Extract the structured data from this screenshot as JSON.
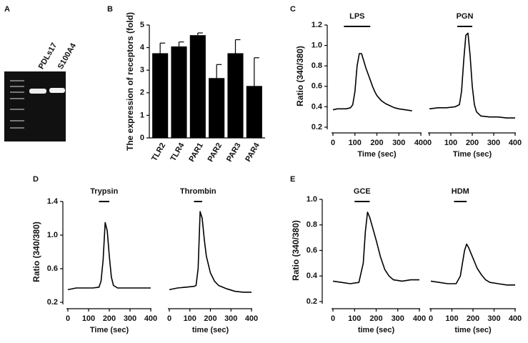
{
  "gel": {
    "label": "A",
    "lanes": [
      "PDLs17",
      "S100A4"
    ]
  },
  "chart_data": [
    {
      "type": "bar",
      "label": "B",
      "ylabel": "The expression of receptors (fold)",
      "categories": [
        "TLR2",
        "TLR4",
        "PAR1",
        "PAR2",
        "PAR3",
        "PAR4"
      ],
      "values": [
        3.75,
        4.05,
        4.55,
        2.65,
        3.75,
        2.3
      ],
      "errors": [
        0.45,
        0.2,
        0.1,
        0.6,
        0.6,
        1.25
      ],
      "color": "#000000",
      "ylim": [
        0,
        5
      ],
      "yticks": [
        0,
        1,
        2,
        3,
        4,
        5
      ]
    },
    {
      "type": "line",
      "label": "C",
      "ylabel": "Ratio (340/380)",
      "ylim": [
        0.2,
        1.2
      ],
      "yticks": [
        0.2,
        0.4,
        0.6,
        0.8,
        {
          "value": 1,
          "label": "1.0"
        },
        1.2
      ],
      "xlim": [
        0,
        400
      ],
      "xticks": [
        0,
        100,
        200,
        300,
        400
      ],
      "series": [
        {
          "name": "LPS",
          "color": "#000000",
          "stimulus": [
            50,
            170
          ],
          "xlabel": "Time (sec)",
          "x": [
            0,
            20,
            40,
            60,
            80,
            90,
            100,
            110,
            120,
            130,
            140,
            150,
            160,
            170,
            180,
            190,
            200,
            220,
            240,
            260,
            280,
            300,
            330,
            360
          ],
          "values": [
            0.37,
            0.38,
            0.38,
            0.38,
            0.39,
            0.42,
            0.55,
            0.8,
            0.92,
            0.92,
            0.85,
            0.78,
            0.72,
            0.66,
            0.6,
            0.55,
            0.51,
            0.46,
            0.43,
            0.41,
            0.39,
            0.38,
            0.37,
            0.36
          ]
        },
        {
          "name": "PGN",
          "color": "#000000",
          "stimulus": [
            130,
            200
          ],
          "xlabel": "Time (sec)",
          "x": [
            0,
            40,
            80,
            120,
            140,
            150,
            160,
            170,
            180,
            190,
            200,
            210,
            220,
            240,
            280,
            320,
            360,
            400
          ],
          "values": [
            0.38,
            0.39,
            0.39,
            0.4,
            0.42,
            0.55,
            0.85,
            1.1,
            1.12,
            0.9,
            0.6,
            0.42,
            0.35,
            0.31,
            0.3,
            0.3,
            0.29,
            0.29
          ]
        }
      ]
    },
    {
      "type": "line",
      "label": "D",
      "ylabel": "Ratio (340/380)",
      "ylim": [
        0.2,
        1.4
      ],
      "yticks": [
        0.2,
        0.6,
        {
          "value": 1,
          "label": "1.0"
        },
        1.4
      ],
      "xlim": [
        0,
        400
      ],
      "xticks": [
        0,
        100,
        200,
        300,
        400
      ],
      "series": [
        {
          "name": "Trypsin",
          "color": "#000000",
          "stimulus": [
            150,
            200
          ],
          "xlabel": "Time (sec)",
          "x": [
            0,
            40,
            80,
            120,
            150,
            160,
            170,
            180,
            190,
            200,
            210,
            220,
            240,
            280,
            320,
            360,
            400
          ],
          "values": [
            0.35,
            0.37,
            0.37,
            0.37,
            0.38,
            0.45,
            0.7,
            1.15,
            1.05,
            0.75,
            0.5,
            0.4,
            0.37,
            0.37,
            0.37,
            0.37,
            0.37
          ]
        },
        {
          "name": "Thrombin",
          "color": "#000000",
          "stimulus": [
            120,
            160
          ],
          "xlabel": "time (sec)",
          "x": [
            0,
            40,
            80,
            120,
            130,
            140,
            150,
            160,
            170,
            180,
            200,
            220,
            240,
            280,
            320,
            360,
            400
          ],
          "values": [
            0.35,
            0.37,
            0.38,
            0.39,
            0.4,
            0.6,
            1.28,
            1.2,
            0.95,
            0.75,
            0.55,
            0.45,
            0.4,
            0.36,
            0.33,
            0.32,
            0.32
          ]
        }
      ]
    },
    {
      "type": "line",
      "label": "E",
      "ylabel": "Ratio (340/380)",
      "ylim": [
        0.2,
        1.0
      ],
      "yticks": [
        0.2,
        0.4,
        0.6,
        0.8,
        {
          "value": 1,
          "label": "1.0"
        }
      ],
      "xlim": [
        0,
        400
      ],
      "xticks": [
        0,
        100,
        200,
        300,
        400
      ],
      "series": [
        {
          "name": "GCE",
          "color": "#000000",
          "stimulus": [
            100,
            170
          ],
          "xlabel": "time (sec)",
          "x": [
            0,
            40,
            80,
            120,
            140,
            150,
            160,
            170,
            180,
            200,
            220,
            240,
            260,
            280,
            320,
            360,
            400
          ],
          "values": [
            0.36,
            0.35,
            0.34,
            0.35,
            0.5,
            0.75,
            0.9,
            0.86,
            0.8,
            0.68,
            0.55,
            0.45,
            0.4,
            0.37,
            0.36,
            0.37,
            0.37
          ]
        },
        {
          "name": "HDM",
          "color": "#000000",
          "stimulus": [
            110,
            170
          ],
          "xlabel": "time (sec)",
          "x": [
            0,
            40,
            80,
            120,
            140,
            160,
            170,
            180,
            190,
            200,
            220,
            240,
            260,
            280,
            320,
            360,
            400
          ],
          "values": [
            0.36,
            0.35,
            0.34,
            0.34,
            0.4,
            0.6,
            0.65,
            0.62,
            0.58,
            0.54,
            0.46,
            0.41,
            0.37,
            0.35,
            0.34,
            0.33,
            0.33
          ]
        }
      ]
    }
  ]
}
